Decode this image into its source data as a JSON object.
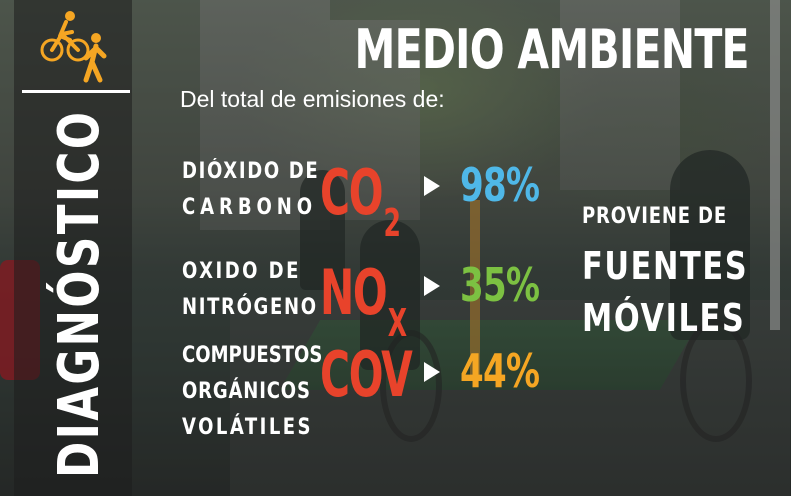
{
  "header": {
    "section": "DIAGNÓSTICO",
    "title": "MEDIO AMBIENTE",
    "subtitle": "Del total de emisiones de:"
  },
  "icon": {
    "name": "cyclist-pedestrian-icon",
    "color": "#f5a623"
  },
  "rows": [
    {
      "label_lines": [
        "DIÓXIDO DE",
        "CARBONO"
      ],
      "formula": "CO",
      "subscript": "2",
      "percent": "98%",
      "percent_color": "#4fb8e8"
    },
    {
      "label_lines": [
        "OXIDO DE",
        "NITRÓGENO"
      ],
      "formula": "NO",
      "subscript": "X",
      "percent": "35%",
      "percent_color": "#7cc142"
    },
    {
      "label_lines": [
        "COMPUESTOS",
        "ORGÁNICOS",
        "VOLÁTILES"
      ],
      "formula": "COV",
      "subscript": "",
      "percent": "44%",
      "percent_color": "#f5a623"
    }
  ],
  "note": {
    "line1": "PROVIENE DE",
    "line2": "FUENTES",
    "line3": "MÓVILES"
  },
  "colors": {
    "formula": "#e8432b",
    "accent": "#f5a623",
    "text": "#ffffff"
  }
}
